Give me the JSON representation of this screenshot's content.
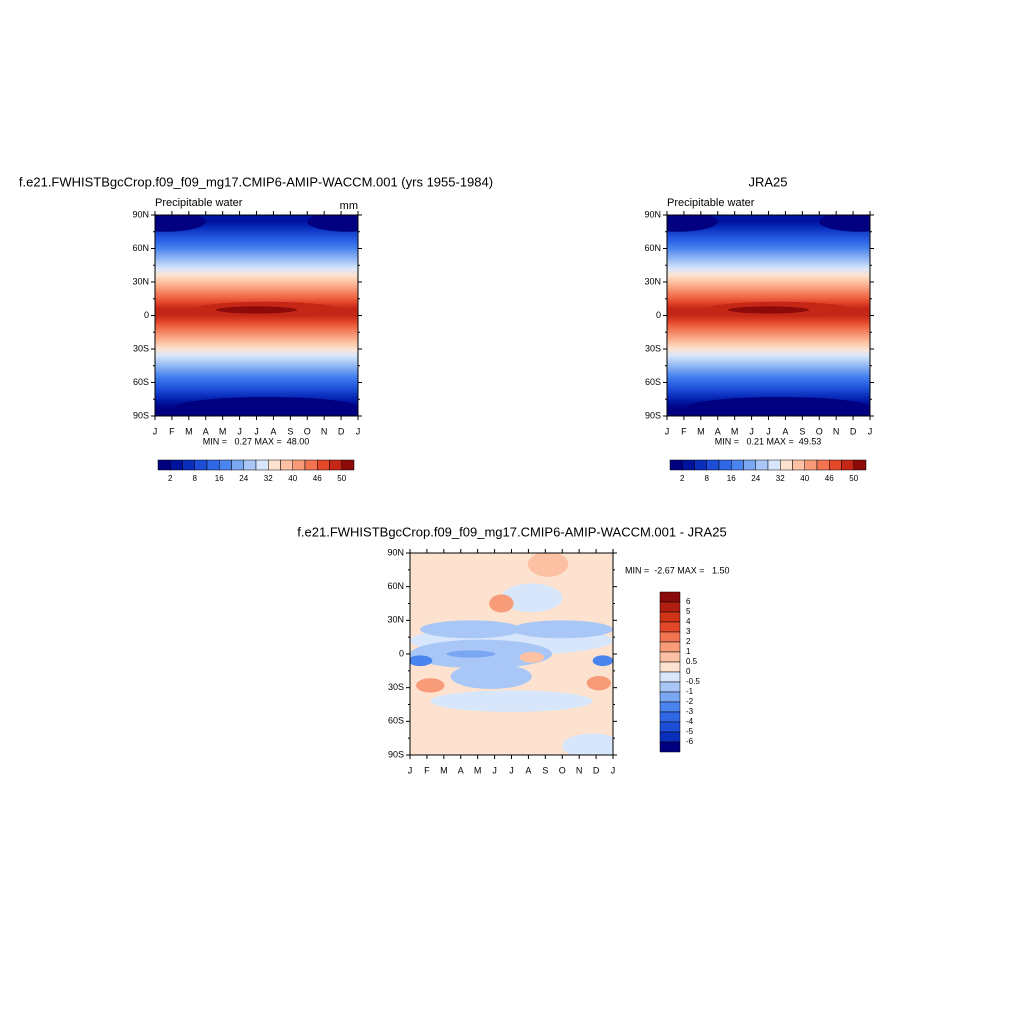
{
  "chart_data": [
    {
      "type": "contour",
      "title": "f.e21.FWHISTBgcCrop.f09_f09_mg17.CMIP6-AMIP-WACCM.001 (yrs 1955-1984)",
      "left_string": "Precipitable water",
      "right_string": "mm",
      "categories": [
        "J",
        "F",
        "M",
        "A",
        "M",
        "J",
        "J",
        "A",
        "S",
        "O",
        "N",
        "D",
        "J"
      ],
      "ylim": [
        -90,
        90
      ],
      "yticks": [
        {
          "value": 90,
          "label": "90N"
        },
        {
          "value": 60,
          "label": "60N"
        },
        {
          "value": 30,
          "label": "30N"
        },
        0,
        {
          "value": -30,
          "label": "30S"
        },
        {
          "value": -60,
          "label": "60S"
        },
        {
          "value": -90,
          "label": "90S"
        }
      ],
      "stats": "MIN =   0.27 MAX =  48.00",
      "colorbar": {
        "orientation": "horizontal",
        "colors": [
          "#000080",
          "#00139e",
          "#0a2fbd",
          "#1c4ed8",
          "#2f67e6",
          "#4a84ee",
          "#7aa6f2",
          "#a9c7f6",
          "#d8e6fb",
          "#fde3cf",
          "#fcc1a3",
          "#f89b78",
          "#f27350",
          "#e4482b",
          "#c42716",
          "#8c0a0a"
        ],
        "ticks": [
          2,
          8,
          16,
          24,
          32,
          40,
          46,
          50
        ]
      }
    },
    {
      "type": "contour",
      "title": "JRA25",
      "left_string": "Precipitable water",
      "categories": [
        "J",
        "F",
        "M",
        "A",
        "M",
        "J",
        "J",
        "A",
        "S",
        "O",
        "N",
        "D",
        "J"
      ],
      "ylim": [
        -90,
        90
      ],
      "yticks": [
        {
          "value": 90,
          "label": "90N"
        },
        {
          "value": 60,
          "label": "60N"
        },
        {
          "value": 30,
          "label": "30N"
        },
        0,
        {
          "value": -30,
          "label": "30S"
        },
        {
          "value": -60,
          "label": "60S"
        },
        {
          "value": -90,
          "label": "90S"
        }
      ],
      "stats": "MIN =   0.21 MAX =  49.53",
      "colorbar": {
        "orientation": "horizontal",
        "colors": [
          "#000080",
          "#00139e",
          "#0a2fbd",
          "#1c4ed8",
          "#2f67e6",
          "#4a84ee",
          "#7aa6f2",
          "#a9c7f6",
          "#d8e6fb",
          "#fde3cf",
          "#fcc1a3",
          "#f89b78",
          "#f27350",
          "#e4482b",
          "#c42716",
          "#8c0a0a"
        ],
        "ticks": [
          2,
          8,
          16,
          24,
          32,
          40,
          46,
          50
        ]
      }
    },
    {
      "type": "contour",
      "title": "f.e21.FWHISTBgcCrop.f09_f09_mg17.CMIP6-AMIP-WACCM.001 - JRA25",
      "categories": [
        "J",
        "F",
        "M",
        "A",
        "M",
        "J",
        "J",
        "A",
        "S",
        "O",
        "N",
        "D",
        "J"
      ],
      "ylim": [
        -90,
        90
      ],
      "yticks": [
        {
          "value": 90,
          "label": "90N"
        },
        {
          "value": 60,
          "label": "60N"
        },
        {
          "value": 30,
          "label": "30N"
        },
        0,
        {
          "value": -30,
          "label": "30S"
        },
        {
          "value": -60,
          "label": "60S"
        },
        {
          "value": -90,
          "label": "90S"
        }
      ],
      "stats": "MIN =  -2.67 MAX =   1.50",
      "colorbar": {
        "orientation": "vertical",
        "colors": [
          "#8c0a0a",
          "#b01e10",
          "#cf3419",
          "#e4482b",
          "#f27350",
          "#f89b78",
          "#fcc1a3",
          "#fde3cf",
          "#d8e6fb",
          "#a9c7f6",
          "#7aa6f2",
          "#4a84ee",
          "#2f67e6",
          "#1c4ed8",
          "#0a2fbd",
          "#000080"
        ],
        "ticks": [
          6,
          5,
          4,
          3,
          2,
          1,
          0.5,
          0,
          -0.5,
          -1,
          -2,
          -3,
          -4,
          -5,
          -6
        ]
      }
    }
  ]
}
